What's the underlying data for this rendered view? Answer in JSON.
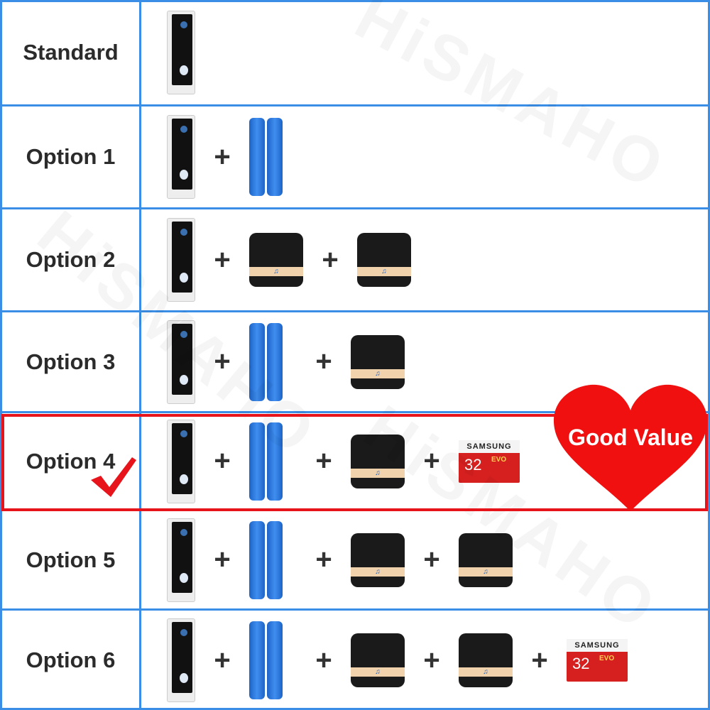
{
  "watermark": "HiSMAHO",
  "highlight": {
    "badge": "Good Value",
    "color": "#e8141b",
    "row": "Option 4"
  },
  "accent_border": "#3a8ee6",
  "sd_card": {
    "brand": "SAMSUNG",
    "capacity": "32",
    "model": "EVO"
  },
  "rows": [
    {
      "label": "Standard",
      "items": [
        "doorbell"
      ]
    },
    {
      "label": "Option 1",
      "items": [
        "doorbell",
        "plus",
        "battery"
      ]
    },
    {
      "label": "Option 2",
      "items": [
        "doorbell",
        "plus",
        "chime",
        "plus",
        "chime"
      ]
    },
    {
      "label": "Option 3",
      "items": [
        "doorbell",
        "plus",
        "battery",
        "plus",
        "chime"
      ]
    },
    {
      "label": "Option 4",
      "items": [
        "doorbell",
        "plus",
        "battery",
        "plus",
        "chime",
        "plus",
        "card"
      ]
    },
    {
      "label": "Option 5",
      "items": [
        "doorbell",
        "plus",
        "battery",
        "plus",
        "chime",
        "plus",
        "chime"
      ]
    },
    {
      "label": "Option 6",
      "items": [
        "doorbell",
        "plus",
        "battery",
        "plus",
        "chime",
        "plus",
        "chime",
        "plus",
        "card"
      ]
    }
  ]
}
